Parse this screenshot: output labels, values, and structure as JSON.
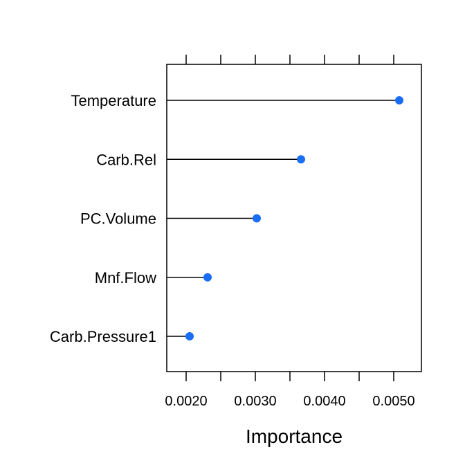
{
  "chart_data": {
    "type": "dot",
    "title": "",
    "xlabel": "Importance",
    "ylabel": "",
    "xlim": [
      0.00172,
      0.0054
    ],
    "x_ticks": [
      0.002,
      0.0025,
      0.003,
      0.0035,
      0.004,
      0.0045,
      0.005
    ],
    "x_tick_labels": [
      {
        "value": 0.002,
        "label": "0.0020"
      },
      {
        "value": 0.003,
        "label": "0.0030"
      },
      {
        "value": 0.004,
        "label": "0.0040"
      },
      {
        "value": 0.005,
        "label": "0.0050"
      }
    ],
    "grid": false,
    "categories": [
      "Temperature",
      "Carb.Rel",
      "PC.Volume",
      "Mnf.Flow",
      "Carb.Pressure1"
    ],
    "values": [
      0.00508,
      0.00366,
      0.00302,
      0.00231,
      0.00205
    ],
    "colors": {
      "point": "#1a6df5",
      "line": "#000000",
      "frame": "#000000"
    }
  }
}
